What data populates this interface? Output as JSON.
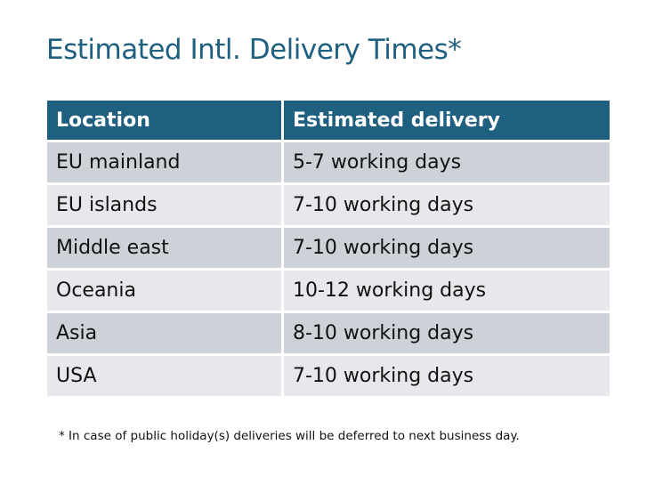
{
  "title": "Estimated Intl. Delivery Times*",
  "table": {
    "headers": [
      "Location",
      "Estimated delivery"
    ],
    "rows": [
      [
        "EU mainland",
        "5-7 working days"
      ],
      [
        "EU islands",
        "7-10 working days"
      ],
      [
        "Middle east",
        "7-10 working days"
      ],
      [
        "Oceania",
        "10-12 working days"
      ],
      [
        "Asia",
        "8-10 working days"
      ],
      [
        "USA",
        "7-10 working days"
      ]
    ]
  },
  "footnote": "* In case of public holiday(s) deliveries will be deferred to next business day.",
  "colors": {
    "header": "#1f6080",
    "title": "#1f5f7f",
    "row_dark": "#cdd1d8",
    "row_light": "#e6e8eb"
  }
}
